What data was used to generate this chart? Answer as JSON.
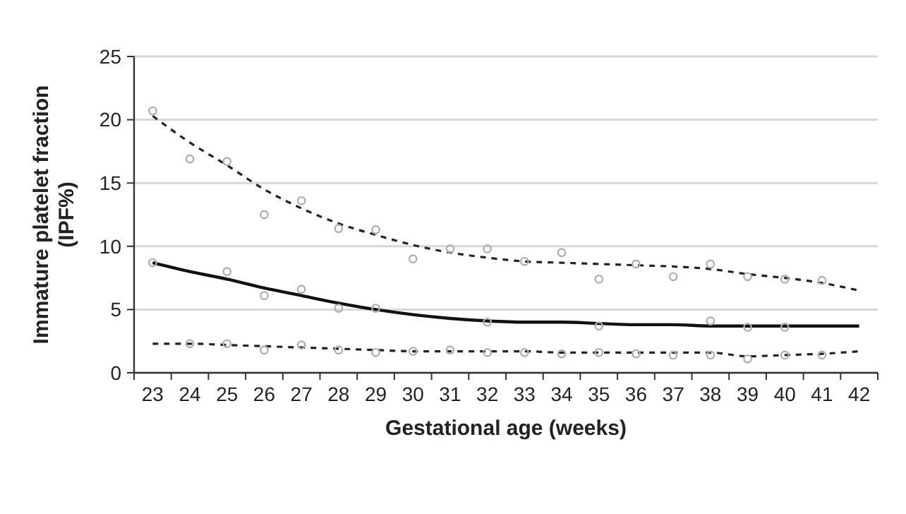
{
  "chart_data": {
    "type": "line",
    "xlabel": "Gestational age (weeks)",
    "ylabel": "Immature platelet fraction\n(IPF%)",
    "categories": [
      "23",
      "24",
      "25",
      "26",
      "27",
      "28",
      "29",
      "30",
      "31",
      "32",
      "33",
      "34",
      "35",
      "36",
      "37",
      "38",
      "39",
      "40",
      "41",
      "42"
    ],
    "ylim": [
      0,
      25
    ],
    "yticks": [
      0,
      5,
      10,
      15,
      20,
      25
    ],
    "grid": "y",
    "series": [
      {
        "color": "#222222",
        "line_style": "dashed",
        "marker": "none",
        "values": [
          20.3,
          18.2,
          16.4,
          14.5,
          13.0,
          11.8,
          10.9,
          10.1,
          9.5,
          9.1,
          8.8,
          8.7,
          8.6,
          8.5,
          8.4,
          8.2,
          7.8,
          7.5,
          7.1,
          6.5
        ]
      },
      {
        "color": "#111111",
        "line_style": "solid",
        "marker": "none",
        "values": [
          8.7,
          8.0,
          7.4,
          6.7,
          6.1,
          5.5,
          5.0,
          4.6,
          4.3,
          4.1,
          4.0,
          4.0,
          3.9,
          3.8,
          3.8,
          3.7,
          3.7,
          3.7,
          3.7,
          3.7
        ]
      },
      {
        "color": "#222222",
        "line_style": "dashed",
        "marker": "none",
        "values": [
          2.3,
          2.3,
          2.2,
          2.1,
          2.0,
          1.9,
          1.8,
          1.7,
          1.7,
          1.7,
          1.7,
          1.6,
          1.6,
          1.6,
          1.6,
          1.6,
          1.3,
          1.4,
          1.5,
          1.7
        ]
      },
      {
        "type": "scatter",
        "color": "#b0b0b0",
        "marker": "circle",
        "x": [
          "23",
          "24",
          "25",
          "26",
          "27",
          "28",
          "29",
          "30",
          "31",
          "32",
          "33",
          "34",
          "35",
          "36",
          "37",
          "38",
          "39",
          "40",
          "41"
        ],
        "values": [
          20.7,
          16.9,
          16.7,
          12.5,
          13.6,
          11.4,
          11.3,
          9.0,
          9.8,
          9.8,
          8.8,
          9.5,
          7.4,
          8.6,
          7.6,
          8.6,
          7.6,
          7.4,
          7.3
        ]
      },
      {
        "type": "scatter",
        "color": "#b0b0b0",
        "marker": "circle",
        "x": [
          "23",
          "25",
          "26",
          "27",
          "28",
          "29",
          "32",
          "35",
          "38",
          "39",
          "40"
        ],
        "values": [
          8.7,
          8.0,
          6.1,
          6.6,
          5.1,
          5.1,
          4.0,
          3.7,
          4.1,
          3.6,
          3.6
        ]
      },
      {
        "type": "scatter",
        "color": "#b0b0b0",
        "marker": "circle",
        "x": [
          "24",
          "25",
          "26",
          "27",
          "28",
          "29",
          "30",
          "31",
          "32",
          "33",
          "34",
          "35",
          "36",
          "37",
          "38",
          "39",
          "40",
          "41"
        ],
        "values": [
          2.3,
          2.3,
          1.8,
          2.2,
          1.8,
          1.6,
          1.7,
          1.8,
          1.6,
          1.6,
          1.5,
          1.6,
          1.5,
          1.4,
          1.4,
          1.1,
          1.4,
          1.4
        ]
      }
    ]
  }
}
